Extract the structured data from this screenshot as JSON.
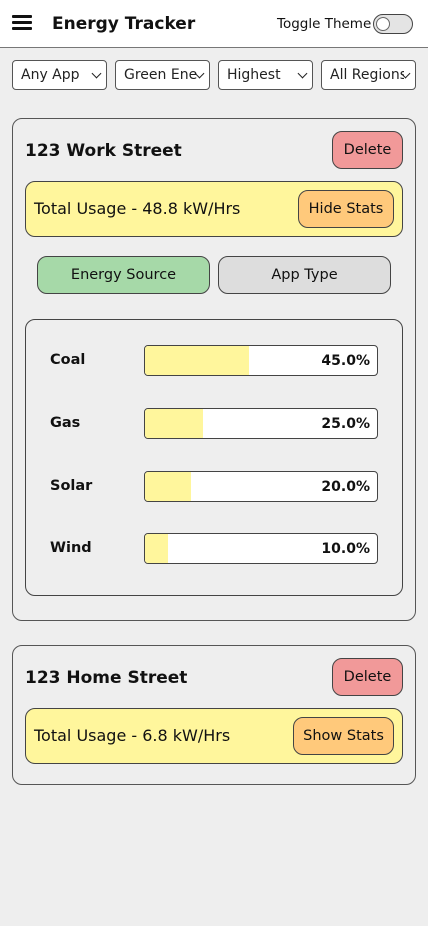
{
  "header": {
    "title": "Energy Tracker",
    "menu_icon": "hamburger-menu-icon",
    "theme_toggle_label": "Toggle Theme",
    "theme_toggle_on": false
  },
  "filters": [
    {
      "value": "Any App"
    },
    {
      "value": "Green Energy"
    },
    {
      "value": "Highest"
    },
    {
      "value": "All Regions"
    }
  ],
  "colors": {
    "delete": "#f19999",
    "usage_bg": "#fff69c",
    "stats_button": "#ffc97b",
    "tab_active": "#a6d9a8",
    "tab_inactive": "#dddddd",
    "bar_fill": "#fff69c"
  },
  "locations": [
    {
      "name": "123 Work Street",
      "delete_label": "Delete",
      "usage_text": "Total Usage - 48.8 kW/Hrs",
      "stats_button_label": "Hide Stats",
      "tabs": [
        {
          "label": "Energy Source",
          "active": true
        },
        {
          "label": "App Type",
          "active": false
        }
      ],
      "sources": [
        {
          "name": "Coal",
          "percent": 45.0,
          "label": "45.0%"
        },
        {
          "name": "Gas",
          "percent": 25.0,
          "label": "25.0%"
        },
        {
          "name": "Solar",
          "percent": 20.0,
          "label": "20.0%"
        },
        {
          "name": "Wind",
          "percent": 10.0,
          "label": "10.0%"
        }
      ]
    },
    {
      "name": "123 Home Street",
      "delete_label": "Delete",
      "usage_text": "Total Usage - 6.8 kW/Hrs",
      "stats_button_label": "Show Stats"
    }
  ]
}
